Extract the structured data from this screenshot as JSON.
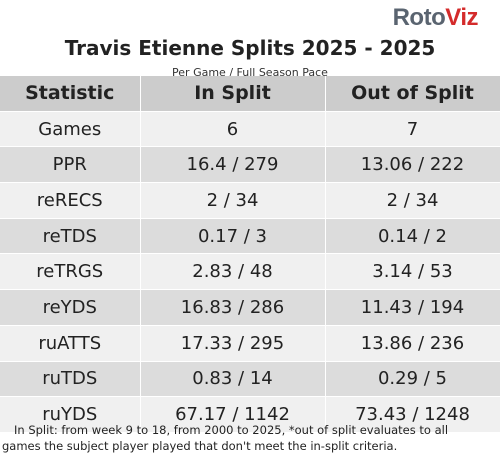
{
  "logo": {
    "part1": "Roto",
    "part2": "Viz"
  },
  "title": "Travis Etienne Splits 2025 - 2025",
  "subtitle": "Per Game / Full Season Pace",
  "table": {
    "headers": [
      "Statistic",
      "In Split",
      "Out of Split"
    ],
    "rows": [
      [
        "Games",
        "6",
        "7"
      ],
      [
        "PPR",
        "16.4 / 279",
        "13.06 / 222"
      ],
      [
        "reRECS",
        "2 / 34",
        "2 / 34"
      ],
      [
        "reTDS",
        "0.17 / 3",
        "0.14 / 2"
      ],
      [
        "reTRGS",
        "2.83 / 48",
        "3.14 / 53"
      ],
      [
        "reYDS",
        "16.83 / 286",
        "11.43 / 194"
      ],
      [
        "ruATTS",
        "17.33 / 295",
        "13.86 / 236"
      ],
      [
        "ruTDS",
        "0.83 / 14",
        "0.29 / 5"
      ],
      [
        "ruYDS",
        "67.17 / 1142",
        "73.43 / 1248"
      ]
    ]
  },
  "footnote": {
    "line1": "In Split: from week 9 to 18, from 2000 to 2025,  *out of split evaluates to all",
    "line2": "games the subject player played that don't meet the in-split criteria."
  },
  "colors": {
    "header_bg": "#cccccc",
    "row_light": "#f0f0f0",
    "row_dark": "#dcdcdc",
    "logo_gray": "#5a6470",
    "logo_red": "#d42b2b"
  }
}
